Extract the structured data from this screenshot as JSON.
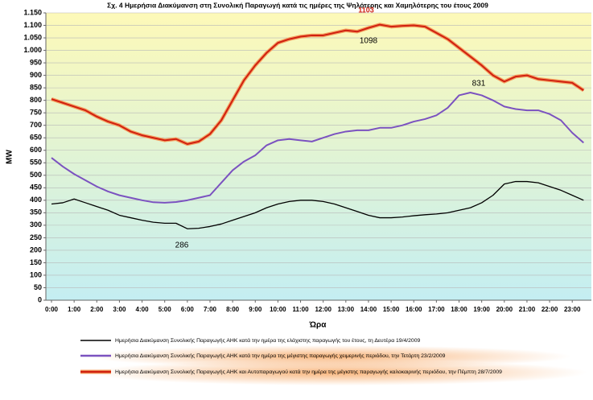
{
  "chart_data": {
    "type": "line",
    "title": "Σχ. 4 Ημερήσια Διακύμανση στη Συνολική Παραγωγή κατά τις ημέρες της Ψηλότερης και Χαμηλότερης του έτους 2009",
    "y_label": "MW",
    "x_label": "Ώρα",
    "categories": [
      "0:00",
      null,
      "1:00",
      null,
      "2:00",
      null,
      "3:00",
      null,
      "4:00",
      null,
      "5:00",
      null,
      "6:00",
      null,
      "7:00",
      null,
      "8:00",
      null,
      "9:00",
      null,
      "10:00",
      null,
      "11:00",
      null,
      "12:00",
      null,
      "13:00",
      null,
      "14:00",
      null,
      "15:00",
      null,
      "16:00",
      null,
      "17:00",
      null,
      "18:00",
      null,
      "19:00",
      null,
      "20:00",
      null,
      "21:00",
      null,
      "22:00",
      null,
      "23:00",
      null
    ],
    "series": [
      {
        "name": "Ημερήσια Διακύμανση Συνολικής Παραγωγής ΑΗΚ κατά την ημέρα της ελάχιστης παραγωγής του έτους, τη Δευτέρα 19/4/2009",
        "color": "#000000",
        "values": [
          385,
          390,
          405,
          390,
          375,
          360,
          340,
          330,
          320,
          312,
          308,
          308,
          286,
          288,
          295,
          305,
          320,
          335,
          350,
          370,
          385,
          395,
          400,
          400,
          395,
          385,
          370,
          355,
          340,
          330,
          330,
          333,
          338,
          342,
          345,
          350,
          360,
          370,
          390,
          420,
          465,
          475,
          475,
          470,
          455,
          440,
          420,
          400
        ]
      },
      {
        "name": "Ημερήσια Διακύμανση Συνολικής Παραγωγής ΑΗΚ κατά την ημέρα της μέγιστης παραγωγής χειμερινής περιόδου, την Τετάρτη 23/2/2009",
        "color": "#7b52c0",
        "values": [
          570,
          535,
          505,
          480,
          455,
          435,
          420,
          410,
          400,
          392,
          390,
          393,
          400,
          410,
          420,
          470,
          520,
          555,
          580,
          620,
          640,
          645,
          640,
          635,
          650,
          665,
          675,
          680,
          680,
          690,
          690,
          700,
          715,
          725,
          740,
          770,
          820,
          831,
          820,
          800,
          775,
          765,
          760,
          760,
          745,
          720,
          670,
          630
        ]
      },
      {
        "name": "Ημερήσια Διακύμανση Συνολικής Παραγωγής ΑΗΚ και Αυτοπαραγωγού κατά την ημέρα της μέγιστης παραγωγής καλοκαιρινής περιόδου, την Πέμπτη 28/7/2009",
        "color": "#d02010",
        "values": [
          805,
          790,
          775,
          760,
          735,
          715,
          700,
          675,
          660,
          650,
          640,
          645,
          625,
          635,
          665,
          720,
          800,
          880,
          940,
          990,
          1030,
          1045,
          1055,
          1060,
          1060,
          1070,
          1080,
          1075,
          1090,
          1103,
          1095,
          1098,
          1100,
          1095,
          1070,
          1045,
          1010,
          975,
          940,
          900,
          875,
          895,
          900,
          885,
          880,
          875,
          870,
          840
        ]
      }
    ],
    "annotations": [
      {
        "text": "1103",
        "color": "#d02010"
      },
      {
        "text": "1098",
        "color": "#000000"
      },
      {
        "text": "831",
        "color": "#000000"
      },
      {
        "text": "286",
        "color": "#000000"
      }
    ],
    "ylim": [
      0,
      1150
    ],
    "yticks": [
      0,
      50,
      100,
      150,
      200,
      250,
      300,
      350,
      400,
      450,
      500,
      550,
      600,
      650,
      700,
      750,
      800,
      850,
      900,
      950,
      {
        "value": 1000,
        "label": "1.000"
      },
      {
        "value": 1050,
        "label": "1.050"
      },
      {
        "value": 1100,
        "label": "1.100"
      },
      {
        "value": 1150,
        "label": "1.150"
      }
    ],
    "grid": true
  }
}
